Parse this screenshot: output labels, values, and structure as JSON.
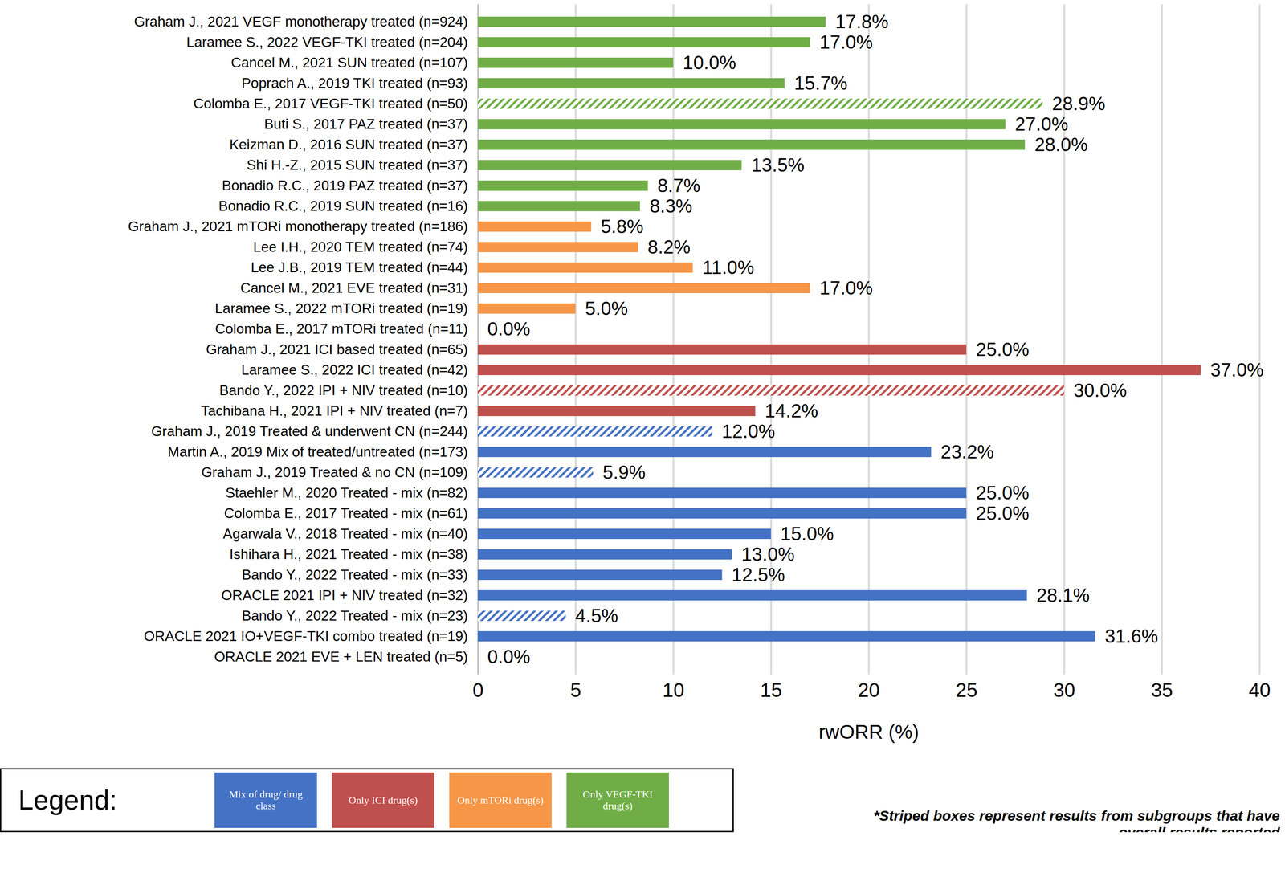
{
  "chart_data": {
    "type": "bar",
    "orientation": "horizontal",
    "data_labels": true,
    "grid": true,
    "legend": "bottom",
    "legend_title": "Legend:",
    "note": "*Striped boxes represent results from subgroups that have overall results reported",
    "xlabel": "rwORR (%)",
    "xlim": [
      0,
      40
    ],
    "xticks": [
      0,
      5,
      10,
      15,
      20,
      25,
      30,
      35,
      40
    ],
    "categories": [
      "Graham J., 2021 VEGF monotherapy treated (n=924)",
      "Laramee S., 2022 VEGF-TKI treated (n=204)",
      "Cancel M., 2021 SUN treated (n=107)",
      "Poprach A., 2019 TKI treated (n=93)",
      "Colomba E., 2017 VEGF-TKI treated (n=50)",
      "Buti S., 2017 PAZ treated (n=37)",
      "Keizman D., 2016 SUN treated (n=37)",
      "Shi H.-Z., 2015 SUN treated (n=37)",
      "Bonadio R.C., 2019 PAZ treated (n=37)",
      "Bonadio R.C., 2019 SUN treated (n=16)",
      "Graham J., 2021 mTORi monotherapy treated (n=186)",
      "Lee I.H., 2020 TEM treated (n=74)",
      "Lee J.B., 2019 TEM treated (n=44)",
      "Cancel M., 2021 EVE treated (n=31)",
      "Laramee S., 2022 mTORi treated (n=19)",
      "Colomba E., 2017 mTORi treated (n=11)",
      "Graham J., 2021 ICI based treated (n=65)",
      "Laramee S., 2022 ICI treated (n=42)",
      "Bando Y., 2022 IPI + NIV treated (n=10)",
      "Tachibana H., 2021 IPI + NIV treated (n=7)",
      "Graham J., 2019 Treated & underwent CN (n=244)",
      "Martin A., 2019 Mix of treated/untreated (n=173)",
      "Graham J., 2019 Treated & no CN (n=109)",
      "Staehler M., 2020 Treated - mix (n=82)",
      "Colomba E., 2017 Treated - mix (n=61)",
      "Agarwala V., 2018 Treated - mix (n=40)",
      "Ishihara H., 2021 Treated - mix (n=38)",
      "Bando Y., 2022 Treated - mix (n=33)",
      "ORACLE 2021 IPI + NIV treated (n=32)",
      "Bando Y., 2022 Treated - mix (n=23)",
      "ORACLE 2021 IO+VEGF-TKI combo treated (n=19)",
      "ORACLE 2021 EVE + LEN treated (n=5)"
    ],
    "striped": [
      false,
      false,
      false,
      false,
      true,
      false,
      false,
      false,
      false,
      false,
      false,
      false,
      false,
      false,
      false,
      false,
      false,
      false,
      true,
      false,
      true,
      false,
      true,
      false,
      false,
      false,
      false,
      false,
      false,
      true,
      false,
      false
    ],
    "series": [
      {
        "name": "Mix of drug/ drug class",
        "color": "#4472c4",
        "values": [
          null,
          null,
          null,
          null,
          null,
          null,
          null,
          null,
          null,
          null,
          null,
          null,
          null,
          null,
          null,
          null,
          null,
          null,
          null,
          null,
          12.0,
          23.2,
          5.9,
          25.0,
          25.0,
          15.0,
          13.0,
          12.5,
          28.1,
          4.5,
          31.6,
          0.0
        ],
        "value_labels": [
          null,
          null,
          null,
          null,
          null,
          null,
          null,
          null,
          null,
          null,
          null,
          null,
          null,
          null,
          null,
          null,
          null,
          null,
          null,
          null,
          "12.0%",
          "23.2%",
          "5.9%",
          "25.0%",
          "25.0%",
          "15.0%",
          "13.0%",
          "12.5%",
          "28.1%",
          "4.5%",
          "31.6%",
          "0.0%"
        ]
      },
      {
        "name": "Only ICI drug(s)",
        "color": "#c0504d",
        "values": [
          null,
          null,
          null,
          null,
          null,
          null,
          null,
          null,
          null,
          null,
          null,
          null,
          null,
          null,
          null,
          null,
          25.0,
          37.0,
          30.0,
          14.2,
          null,
          null,
          null,
          null,
          null,
          null,
          null,
          null,
          null,
          null,
          null,
          null
        ],
        "value_labels": [
          null,
          null,
          null,
          null,
          null,
          null,
          null,
          null,
          null,
          null,
          null,
          null,
          null,
          null,
          null,
          null,
          "25.0%",
          "37.0%",
          "30.0%",
          "14.2%",
          null,
          null,
          null,
          null,
          null,
          null,
          null,
          null,
          null,
          null,
          null,
          null
        ]
      },
      {
        "name": "Only mTORi drug(s)",
        "color": "#f79646",
        "values": [
          null,
          null,
          null,
          null,
          null,
          null,
          null,
          null,
          null,
          null,
          5.8,
          8.2,
          11.0,
          17.0,
          5.0,
          0.0,
          null,
          null,
          null,
          null,
          null,
          null,
          null,
          null,
          null,
          null,
          null,
          null,
          null,
          null,
          null,
          null
        ],
        "value_labels": [
          null,
          null,
          null,
          null,
          null,
          null,
          null,
          null,
          null,
          null,
          "5.8%",
          "8.2%",
          "11.0%",
          "17.0%",
          "5.0%",
          "0.0%",
          null,
          null,
          null,
          null,
          null,
          null,
          null,
          null,
          null,
          null,
          null,
          null,
          null,
          null,
          null,
          null
        ]
      },
      {
        "name": "Only VEGF-TKI drug(s)",
        "color": "#70ad47",
        "values": [
          17.8,
          17.0,
          10.0,
          15.7,
          28.9,
          27.0,
          28.0,
          13.5,
          8.7,
          8.3,
          null,
          null,
          null,
          null,
          null,
          null,
          null,
          null,
          null,
          null,
          null,
          null,
          null,
          null,
          null,
          null,
          null,
          null,
          null,
          null,
          null,
          null
        ],
        "value_labels": [
          "17.8%",
          "17.0%",
          "10.0%",
          "15.7%",
          "28.9%",
          "27.0%",
          "28.0%",
          "13.5%",
          "8.7%",
          "8.3%",
          null,
          null,
          null,
          null,
          null,
          null,
          null,
          null,
          null,
          null,
          null,
          null,
          null,
          null,
          null,
          null,
          null,
          null,
          null,
          null,
          null,
          null
        ]
      }
    ]
  }
}
